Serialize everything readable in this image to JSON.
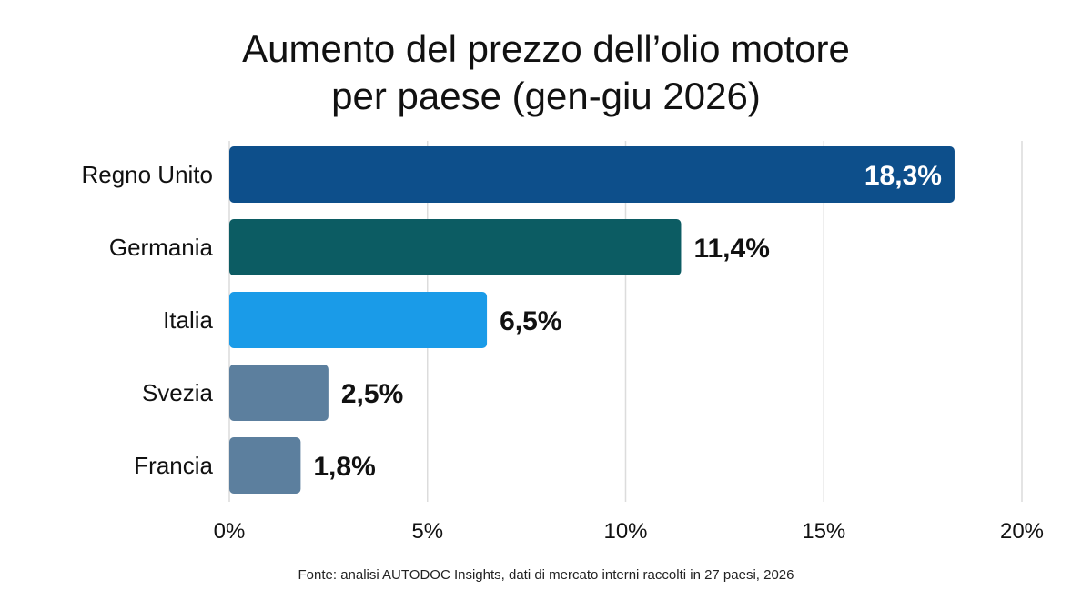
{
  "chart_data": {
    "type": "bar",
    "orientation": "horizontal",
    "title_lines": [
      "Aumento del prezzo dell’olio motore",
      "per paese (gen-giu 2026)"
    ],
    "categories": [
      "Regno Unito",
      "Germania",
      "Italia",
      "Svezia",
      "Francia"
    ],
    "values": [
      18.3,
      11.4,
      6.5,
      2.5,
      1.8
    ],
    "value_labels": [
      "18,3%",
      "11,4%",
      "6,5%",
      "2,5%",
      "1,8%"
    ],
    "colors": [
      "#0d4f8b",
      "#0c5c63",
      "#1a9be8",
      "#5c7f9e",
      "#5c7f9e"
    ],
    "xlim": [
      0,
      20
    ],
    "xticks": [
      0,
      5,
      10,
      15,
      20
    ],
    "xtick_labels": [
      "0%",
      "5%",
      "10%",
      "15%",
      "20%"
    ],
    "grid": true,
    "source": "Fonte: analisi AUTODOC Insights, dati di mercato interni raccolti in 27 paesi, 2026"
  }
}
